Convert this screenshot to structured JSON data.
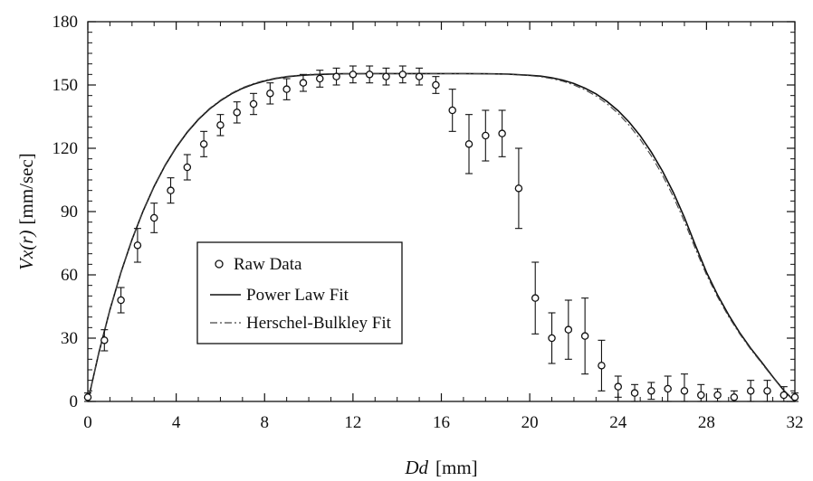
{
  "chart_data": {
    "type": "scatter",
    "title": "",
    "xlabel": "Dd [mm]",
    "ylabel": "Vx(r) [mm/sec]",
    "xlabel_parts": {
      "var": "Dd",
      "unit": "[mm]"
    },
    "ylabel_parts": {
      "var": "Vx(r)",
      "unit": "[mm/sec]"
    },
    "xlim": [
      0,
      32
    ],
    "ylim": [
      0,
      180
    ],
    "xticks": [
      0,
      4,
      8,
      12,
      16,
      20,
      24,
      28,
      32
    ],
    "yticks": [
      0,
      30,
      60,
      90,
      120,
      150,
      180
    ],
    "xtick_labels": [
      "0",
      "4",
      "8",
      "12",
      "16",
      "20",
      "24",
      "28",
      "32"
    ],
    "ytick_labels": [
      "0",
      "30",
      "60",
      "90",
      "120",
      "150",
      "180"
    ],
    "grid": false,
    "legend_position": "center-left",
    "series": [
      {
        "name": "Raw Data",
        "kind": "points-with-error-bars",
        "marker": "open-circle",
        "color": "#111111",
        "x": [
          0,
          0.75,
          1.5,
          2.25,
          3.0,
          3.75,
          4.5,
          5.25,
          6.0,
          6.75,
          7.5,
          8.25,
          9.0,
          9.75,
          10.5,
          11.25,
          12.0,
          12.75,
          13.5,
          14.25,
          15.0,
          15.75,
          16.5,
          17.25,
          18.0,
          18.75,
          19.5,
          20.25,
          21.0,
          21.75,
          22.5,
          23.25,
          24.0,
          24.75,
          25.5,
          26.25,
          27.0,
          27.75,
          28.5,
          29.25,
          30.0,
          30.75,
          31.5,
          32.0
        ],
        "y": [
          2,
          29,
          48,
          74,
          87,
          100,
          111,
          122,
          131,
          137,
          141,
          146,
          148,
          151,
          153,
          154,
          155,
          155,
          154,
          155,
          154,
          150,
          138,
          122,
          126,
          127,
          101,
          49,
          30,
          34,
          31,
          17,
          7,
          4,
          5,
          6,
          5,
          3,
          3,
          2,
          5,
          5,
          3,
          2
        ],
        "err": [
          2,
          5,
          6,
          8,
          7,
          6,
          6,
          6,
          5,
          5,
          5,
          5,
          5,
          4,
          4,
          4,
          4,
          4,
          4,
          4,
          4,
          4,
          10,
          14,
          12,
          11,
          19,
          17,
          12,
          14,
          18,
          12,
          5,
          4,
          4,
          6,
          8,
          5,
          3,
          3,
          5,
          5,
          4,
          2
        ]
      },
      {
        "name": "Power Law Fit",
        "kind": "line",
        "style": "solid",
        "color": "#111111",
        "x": [
          0,
          0.5,
          1,
          1.5,
          2,
          2.5,
          3,
          3.5,
          4,
          4.5,
          5,
          5.5,
          6,
          6.5,
          7,
          7.5,
          8,
          8.5,
          9,
          9.5,
          10,
          10.5,
          11,
          11.5,
          12,
          13,
          14,
          15,
          16,
          17,
          18,
          19,
          20,
          20.5,
          21,
          21.5,
          22,
          22.5,
          23,
          23.5,
          24,
          24.5,
          25,
          25.5,
          26,
          26.5,
          27,
          27.5,
          28,
          28.5,
          29,
          29.5,
          30,
          30.5,
          31,
          31.5,
          32
        ],
        "y": [
          0,
          23.1,
          43.4,
          61.2,
          76.7,
          90.2,
          101.9,
          111.9,
          120.4,
          127.6,
          133.6,
          138.5,
          142.5,
          145.8,
          148.4,
          150.4,
          151.9,
          153.1,
          153.9,
          154.4,
          154.8,
          155.0,
          155.2,
          155.3,
          155.3,
          155.4,
          155.4,
          155.4,
          155.4,
          155.4,
          155.3,
          155.2,
          154.6,
          154.2,
          153.4,
          152.3,
          150.7,
          148.5,
          145.8,
          142.2,
          137.8,
          132.4,
          125.9,
          118.2,
          109.3,
          99.0,
          87.2,
          73.9,
          61.2,
          50.5,
          41.0,
          32.6,
          25.2,
          18.5,
          11.7,
          5.2,
          0
        ]
      },
      {
        "name": "Herschel-Bulkley Fit",
        "kind": "line",
        "style": "dash-dot",
        "color": "#444444",
        "x": [
          0,
          0.5,
          1,
          1.5,
          2,
          2.5,
          3,
          3.5,
          4,
          4.5,
          5,
          5.5,
          6,
          6.5,
          7,
          7.5,
          8,
          8.5,
          9,
          9.5,
          10,
          10.5,
          11,
          11.5,
          12,
          13,
          14,
          15,
          16,
          17,
          18,
          19,
          20,
          20.5,
          21,
          21.5,
          22,
          22.5,
          23,
          23.5,
          24,
          24.5,
          25,
          25.5,
          26,
          26.5,
          27,
          27.5,
          28,
          28.5,
          29,
          29.5,
          30,
          30.5,
          31,
          31.5,
          32
        ],
        "y": [
          0,
          23.3,
          43.6,
          61.5,
          77.0,
          90.5,
          102.2,
          112.2,
          120.7,
          127.9,
          133.9,
          138.8,
          142.8,
          146.1,
          148.7,
          150.7,
          152.2,
          153.3,
          154.1,
          154.6,
          155.0,
          155.2,
          155.3,
          155.4,
          155.4,
          155.4,
          155.4,
          155.4,
          155.4,
          155.4,
          155.3,
          155.1,
          154.4,
          153.9,
          153.0,
          151.8,
          150.0,
          147.7,
          144.8,
          141.1,
          136.5,
          130.9,
          124.2,
          116.4,
          107.4,
          97.0,
          85.3,
          72.2,
          60.0,
          49.5,
          40.2,
          32.0,
          24.7,
          18.1,
          11.4,
          5.0,
          0
        ]
      }
    ]
  }
}
